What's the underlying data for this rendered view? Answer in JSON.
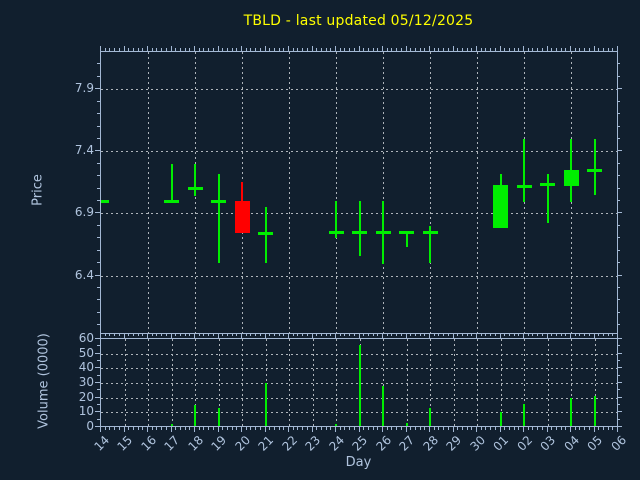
{
  "title": {
    "text": "TBLD - last updated 05/12/2025"
  },
  "colors": {
    "background": "#111f2e",
    "frame": "#a3b8d4",
    "grid": "#aeb4bb",
    "text": "#b0c4de",
    "title": "#ffff00",
    "up": "#00ee00",
    "down": "#ff0000"
  },
  "axes": {
    "x": {
      "label": "Day"
    },
    "price": {
      "label": "Price"
    },
    "volume": {
      "label": "Volume (0000)"
    }
  },
  "chart_data": {
    "type": "candlestick",
    "title": "TBLD - last updated 05/12/2025",
    "xlabel": "Day",
    "ylabel": "Price",
    "y2label": "Volume (0000)",
    "legend": "none",
    "grid": "dashed",
    "x_categories": [
      "14",
      "15",
      "16",
      "17",
      "18",
      "19",
      "20",
      "21",
      "22",
      "23",
      "24",
      "25",
      "26",
      "27",
      "28",
      "29",
      "30",
      "01",
      "02",
      "03",
      "04",
      "05",
      "06"
    ],
    "price_tick_labels": [
      "7.9",
      "7.4",
      "6.9",
      "6.4"
    ],
    "price_ticks": [
      7.9,
      7.4,
      6.9,
      6.4
    ],
    "price_ylim": [
      5.93,
      8.2
    ],
    "price_xgrid_categories": [
      "16",
      "18",
      "20",
      "22",
      "24",
      "26",
      "28",
      "30",
      "02",
      "04"
    ],
    "volume_tick_labels": [
      "60",
      "50",
      "40",
      "30",
      "20",
      "10",
      "0"
    ],
    "volume_ticks": [
      60,
      50,
      40,
      30,
      20,
      10,
      0
    ],
    "volume_ylim": [
      0,
      60
    ],
    "candles": [
      {
        "day": "14",
        "open": 7.0,
        "high": 7.0,
        "low": 7.0,
        "close": 7.0,
        "volume": 0
      },
      {
        "day": "17",
        "open": 7.0,
        "high": 7.3,
        "low": 7.0,
        "close": 7.0,
        "volume": 2
      },
      {
        "day": "18",
        "open": 7.1,
        "high": 7.3,
        "low": 7.04,
        "close": 7.1,
        "volume": 15
      },
      {
        "day": "19",
        "open": 7.0,
        "high": 7.22,
        "low": 6.5,
        "close": 7.0,
        "volume": 13
      },
      {
        "day": "20",
        "open": 7.0,
        "high": 7.15,
        "low": 6.74,
        "close": 6.74,
        "volume": 0
      },
      {
        "day": "21",
        "open": 6.74,
        "high": 6.95,
        "low": 6.5,
        "close": 6.74,
        "volume": 30
      },
      {
        "day": "24",
        "open": 6.75,
        "high": 7.0,
        "low": 6.7,
        "close": 6.75,
        "volume": 2
      },
      {
        "day": "25",
        "open": 6.75,
        "high": 7.0,
        "low": 6.56,
        "close": 6.75,
        "volume": 56
      },
      {
        "day": "26",
        "open": 6.75,
        "high": 7.0,
        "low": 6.49,
        "close": 6.75,
        "volume": 28
      },
      {
        "day": "27",
        "open": 6.75,
        "high": 6.75,
        "low": 6.63,
        "close": 6.75,
        "volume": 3
      },
      {
        "day": "28",
        "open": 6.75,
        "high": 6.8,
        "low": 6.5,
        "close": 6.75,
        "volume": 13
      },
      {
        "day": "01",
        "open": 6.78,
        "high": 7.22,
        "low": 6.78,
        "close": 7.13,
        "volume": 10
      },
      {
        "day": "02",
        "open": 7.12,
        "high": 7.5,
        "low": 6.99,
        "close": 7.12,
        "volume": 16
      },
      {
        "day": "03",
        "open": 7.13,
        "high": 7.22,
        "low": 6.82,
        "close": 7.13,
        "volume": 0
      },
      {
        "day": "04",
        "open": 7.12,
        "high": 7.5,
        "low": 6.99,
        "close": 7.25,
        "volume": 20
      },
      {
        "day": "05",
        "open": 7.25,
        "high": 7.5,
        "low": 7.05,
        "close": 7.25,
        "volume": 21
      }
    ]
  }
}
